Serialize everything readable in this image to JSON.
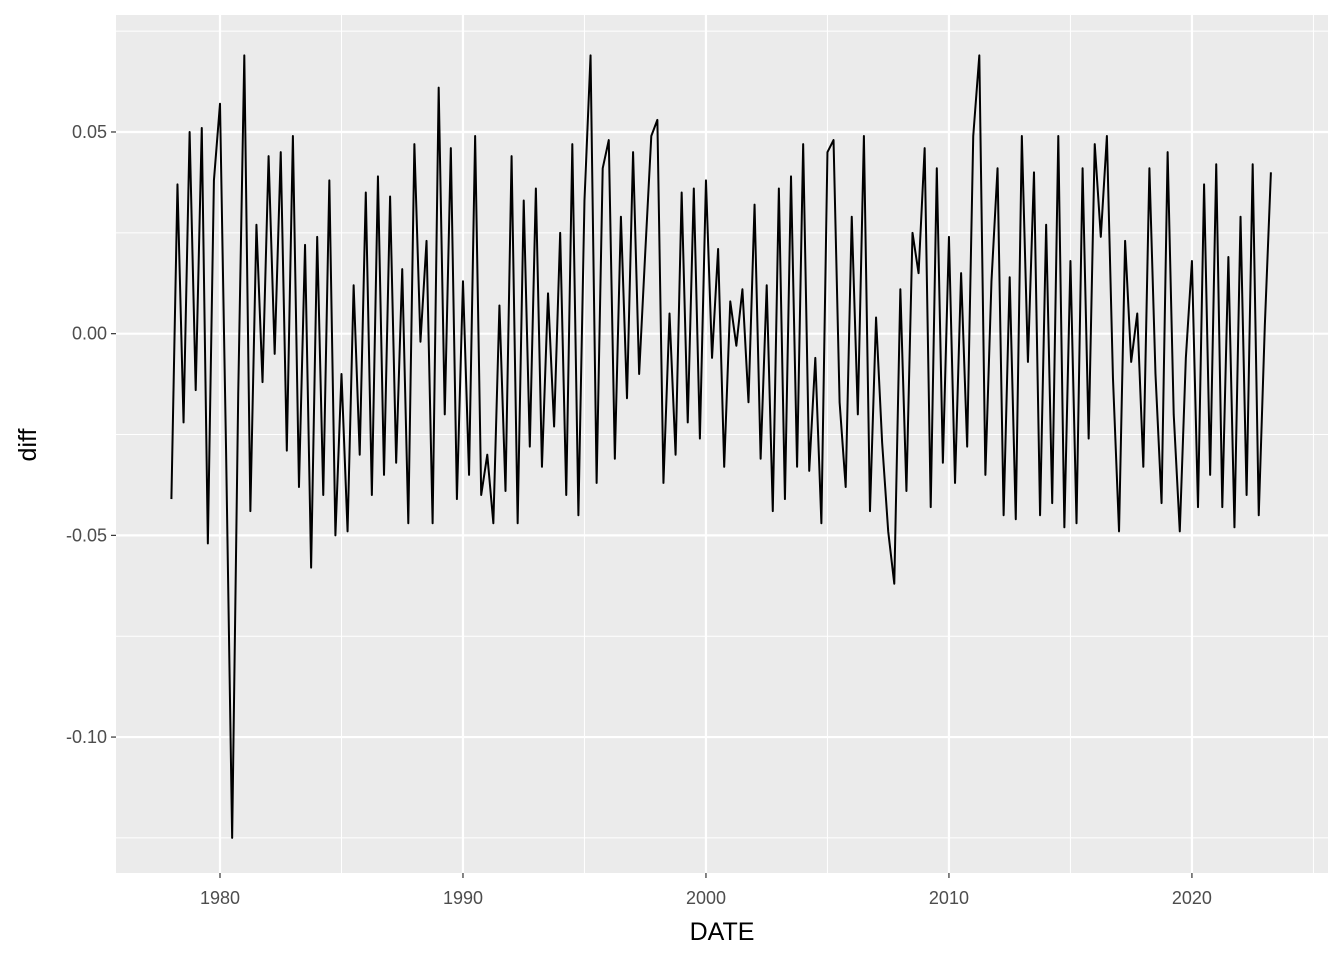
{
  "chart_data": {
    "type": "line",
    "x_label": "DATE",
    "y_label": "diff",
    "x": [
      1978,
      1978.25,
      1978.5,
      1978.75,
      1979,
      1979.25,
      1979.5,
      1979.75,
      1980,
      1980.25,
      1980.5,
      1980.75,
      1981,
      1981.25,
      1981.5,
      1981.75,
      1982,
      1982.25,
      1982.5,
      1982.75,
      1983,
      1983.25,
      1983.5,
      1983.75,
      1984,
      1984.25,
      1984.5,
      1984.75,
      1985,
      1985.25,
      1985.5,
      1985.75,
      1986,
      1986.25,
      1986.5,
      1986.75,
      1987,
      1987.25,
      1987.5,
      1987.75,
      1988,
      1988.25,
      1988.5,
      1988.75,
      1989,
      1989.25,
      1989.5,
      1989.75,
      1990,
      1990.25,
      1990.5,
      1990.75,
      1991,
      1991.25,
      1991.5,
      1991.75,
      1992,
      1992.25,
      1992.5,
      1992.75,
      1993,
      1993.25,
      1993.5,
      1993.75,
      1994,
      1994.25,
      1994.5,
      1994.75,
      1995,
      1995.25,
      1995.5,
      1995.75,
      1996,
      1996.25,
      1996.5,
      1996.75,
      1997,
      1997.25,
      1997.5,
      1997.75,
      1998,
      1998.25,
      1998.5,
      1998.75,
      1999,
      1999.25,
      1999.5,
      1999.75,
      2000,
      2000.25,
      2000.5,
      2000.75,
      2001,
      2001.25,
      2001.5,
      2001.75,
      2002,
      2002.25,
      2002.5,
      2002.75,
      2003,
      2003.25,
      2003.5,
      2003.75,
      2004,
      2004.25,
      2004.5,
      2004.75,
      2005,
      2005.25,
      2005.5,
      2005.75,
      2006,
      2006.25,
      2006.5,
      2006.75,
      2007,
      2007.25,
      2007.5,
      2007.75,
      2008,
      2008.25,
      2008.5,
      2008.75,
      2009,
      2009.25,
      2009.5,
      2009.75,
      2010,
      2010.25,
      2010.5,
      2010.75,
      2011,
      2011.25,
      2011.5,
      2011.75,
      2012,
      2012.25,
      2012.5,
      2012.75,
      2013,
      2013.25,
      2013.5,
      2013.75,
      2014,
      2014.25,
      2014.5,
      2014.75,
      2015,
      2015.25,
      2015.5,
      2015.75,
      2016,
      2016.25,
      2016.5,
      2016.75,
      2017,
      2017.25,
      2017.5,
      2017.75,
      2018,
      2018.25,
      2018.5,
      2018.75,
      2019,
      2019.25,
      2019.5,
      2019.75,
      2020,
      2020.25,
      2020.5,
      2020.75,
      2021,
      2021.25,
      2021.5,
      2021.75,
      2022,
      2022.25,
      2022.5,
      2022.75,
      2023,
      2023.25
    ],
    "series": [
      {
        "name": "diff",
        "color": "#000000",
        "values": [
          -0.041,
          0.037,
          -0.022,
          0.05,
          -0.014,
          0.051,
          -0.052,
          0.038,
          0.057,
          -0.029,
          -0.125,
          -0.015,
          0.069,
          -0.044,
          0.027,
          -0.012,
          0.044,
          -0.005,
          0.045,
          -0.029,
          0.049,
          -0.038,
          0.022,
          -0.058,
          0.024,
          -0.04,
          0.038,
          -0.05,
          -0.01,
          -0.049,
          0.012,
          -0.03,
          0.035,
          -0.04,
          0.039,
          -0.035,
          0.034,
          -0.032,
          0.016,
          -0.047,
          0.047,
          -0.002,
          0.023,
          -0.047,
          0.061,
          -0.02,
          0.046,
          -0.041,
          0.013,
          -0.035,
          0.049,
          -0.04,
          -0.03,
          -0.047,
          0.007,
          -0.039,
          0.044,
          -0.047,
          0.033,
          -0.028,
          0.036,
          -0.033,
          0.01,
          -0.023,
          0.025,
          -0.04,
          0.047,
          -0.045,
          0.033,
          0.069,
          -0.037,
          0.041,
          0.048,
          -0.031,
          0.029,
          -0.016,
          0.045,
          -0.01,
          0.02,
          0.049,
          0.053,
          -0.037,
          0.005,
          -0.03,
          0.035,
          -0.022,
          0.036,
          -0.026,
          0.038,
          -0.006,
          0.021,
          -0.033,
          0.008,
          -0.003,
          0.011,
          -0.017,
          0.032,
          -0.031,
          0.012,
          -0.044,
          0.036,
          -0.041,
          0.039,
          -0.033,
          0.047,
          -0.034,
          -0.006,
          -0.047,
          0.045,
          0.048,
          -0.017,
          -0.038,
          0.029,
          -0.02,
          0.049,
          -0.044,
          0.004,
          -0.027,
          -0.049,
          -0.062,
          0.011,
          -0.039,
          0.025,
          0.015,
          0.046,
          -0.043,
          0.041,
          -0.032,
          0.024,
          -0.037,
          0.015,
          -0.028,
          0.049,
          0.069,
          -0.035,
          0.013,
          0.041,
          -0.045,
          0.014,
          -0.046,
          0.049,
          -0.007,
          0.04,
          -0.045,
          0.027,
          -0.042,
          0.049,
          -0.048,
          0.018,
          -0.047,
          0.041,
          -0.026,
          0.047,
          0.024,
          0.049,
          -0.011,
          -0.049,
          0.023,
          -0.007,
          0.005,
          -0.033,
          0.041,
          -0.01,
          -0.042,
          0.045,
          -0.02,
          -0.049,
          -0.006,
          0.018,
          -0.043,
          0.037,
          -0.035,
          0.042,
          -0.043,
          0.019,
          -0.048,
          0.029,
          -0.04,
          0.042,
          -0.045,
          0.002,
          0.04
        ]
      }
    ],
    "xlim": [
      1975.72,
      2025.6
    ],
    "xticks": [
      1980,
      1990,
      2000,
      2010,
      2020
    ],
    "ylim": [
      -0.1337,
      0.079
    ],
    "yticks": [
      {
        "value": -0.1,
        "label": "-0.10"
      },
      -0.05,
      {
        "value": 0,
        "label": "0.00"
      },
      0.05
    ],
    "grid": true,
    "minor_grid": true
  }
}
